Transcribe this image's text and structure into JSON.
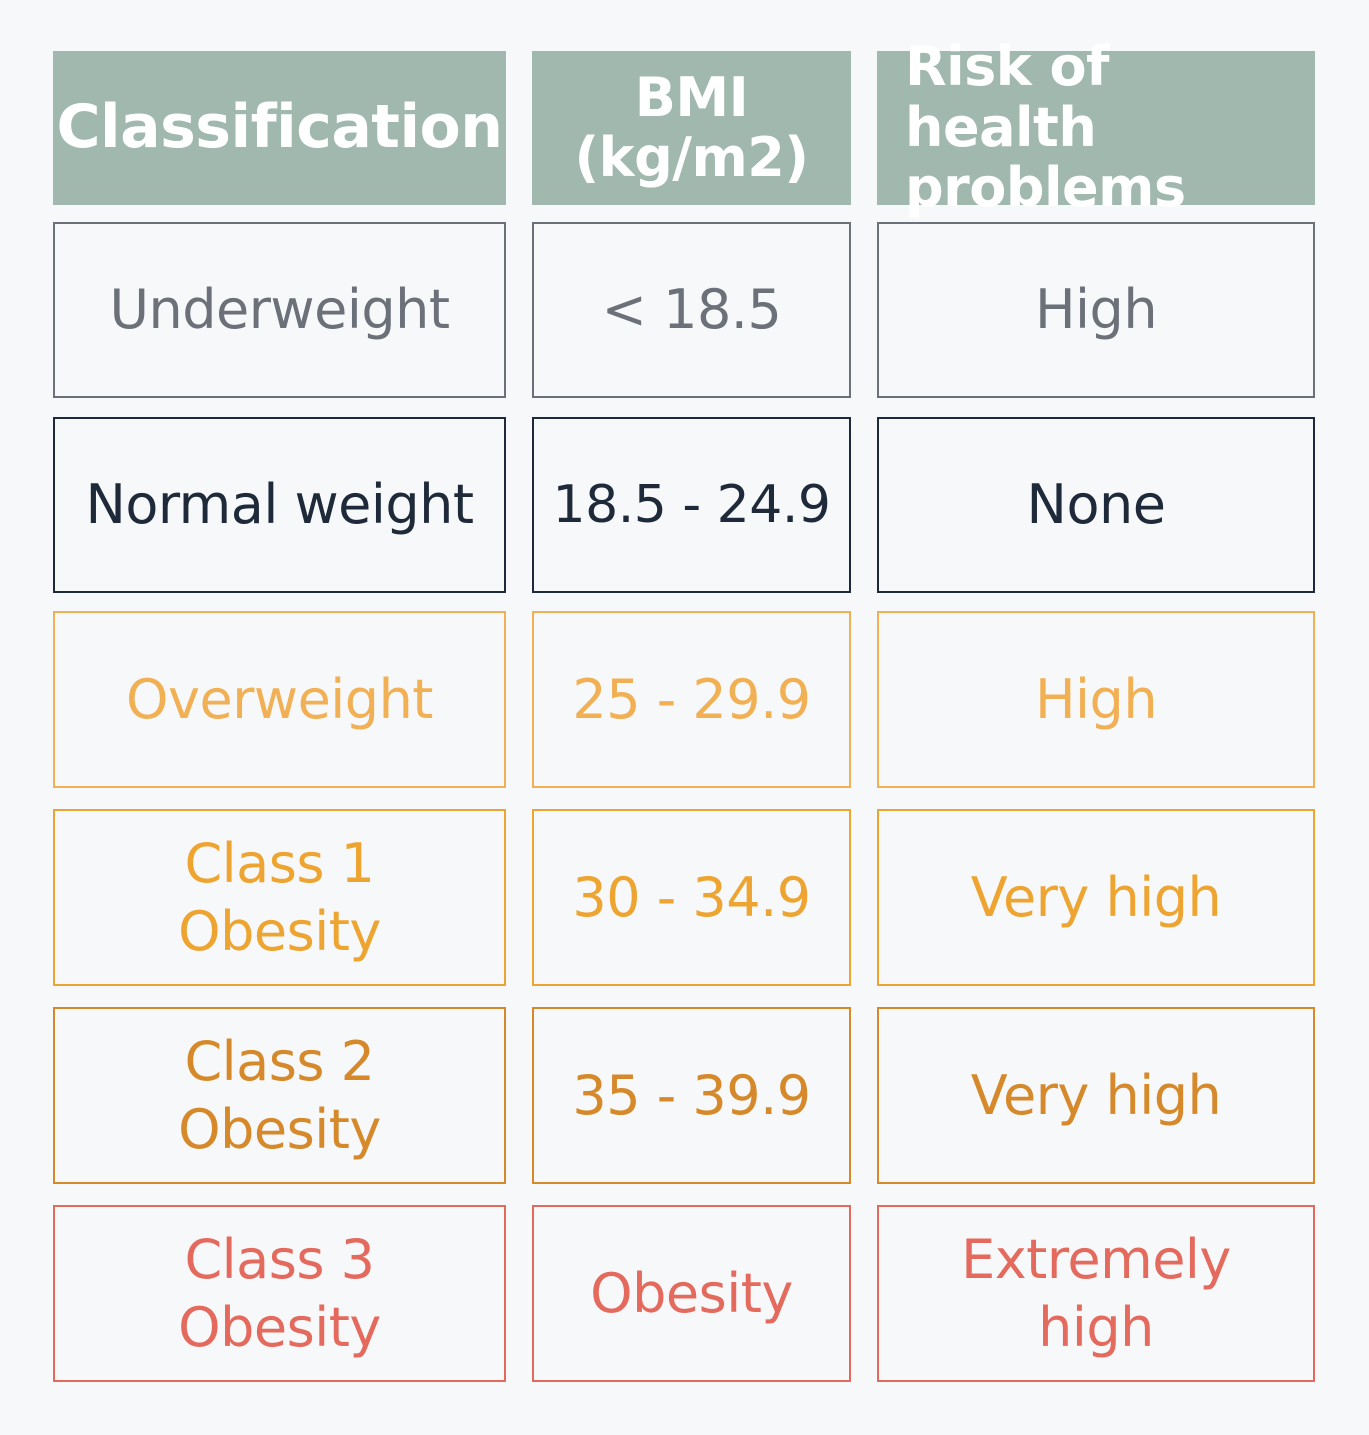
{
  "chart_data": {
    "type": "table",
    "columns": [
      "Classification",
      "BMI (kg/m2)",
      "Risk of health problems"
    ],
    "header_lines": [
      [
        "Classification"
      ],
      [
        "BMI",
        "(kg/m2)"
      ],
      [
        "Risk of health",
        "problems"
      ]
    ],
    "rows": [
      {
        "classification": [
          "Underweight"
        ],
        "bmi": [
          "< 18.5"
        ],
        "risk": [
          "High"
        ],
        "color": "#6b7079"
      },
      {
        "classification": [
          "Normal weight"
        ],
        "bmi": [
          "18.5 - 24.9"
        ],
        "risk": [
          "None"
        ],
        "color": "#1e2a3a"
      },
      {
        "classification": [
          "Overweight"
        ],
        "bmi": [
          "25 - 29.9"
        ],
        "risk": [
          "High"
        ],
        "color": "#f2b054"
      },
      {
        "classification": [
          "Class 1",
          "Obesity"
        ],
        "bmi": [
          "30 - 34.9"
        ],
        "risk": [
          "Very high"
        ],
        "color": "#eea431"
      },
      {
        "classification": [
          "Class 2",
          "Obesity"
        ],
        "bmi": [
          "35 - 39.9"
        ],
        "risk": [
          "Very high"
        ],
        "color": "#d5892a"
      },
      {
        "classification": [
          "Class 3",
          "Obesity"
        ],
        "bmi": [
          "Obesity"
        ],
        "risk": [
          "Extremely",
          "high"
        ],
        "color": "#e46a5e"
      }
    ]
  },
  "colors": {
    "header_background": "#a1b8ae",
    "header_text": "#ffffff",
    "page_background": "#f7f8f9"
  }
}
